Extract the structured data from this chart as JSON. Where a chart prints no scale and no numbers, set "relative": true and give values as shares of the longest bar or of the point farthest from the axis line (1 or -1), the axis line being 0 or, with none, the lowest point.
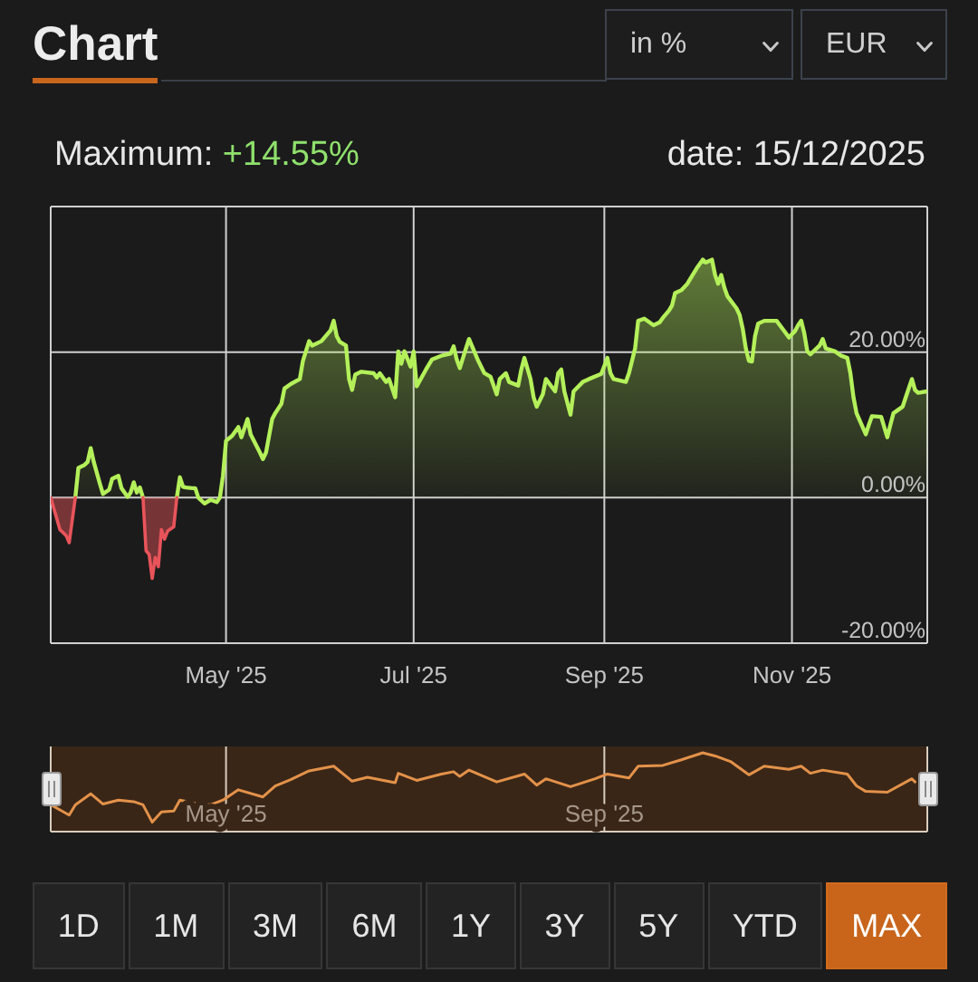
{
  "chart_data": [
    {
      "type": "area",
      "title": "Chart",
      "annotations": [
        "in %",
        "EUR",
        "Maximum: +14.55%",
        "date: 15/12/2025"
      ],
      "x": [
        "2025-03-05",
        "2025-03-08",
        "2025-03-10",
        "2025-03-11",
        "2025-03-12",
        "2025-03-13",
        "2025-03-14",
        "2025-03-16",
        "2025-03-17",
        "2025-03-18",
        "2025-03-19",
        "2025-03-21",
        "2025-03-22",
        "2025-03-24",
        "2025-03-25",
        "2025-03-27",
        "2025-03-28",
        "2025-03-30",
        "2025-03-31",
        "2025-04-01",
        "2025-04-02",
        "2025-04-03",
        "2025-04-04",
        "2025-04-05",
        "2025-04-06",
        "2025-04-07",
        "2025-04-08",
        "2025-04-09",
        "2025-04-10",
        "2025-04-11",
        "2025-04-12",
        "2025-04-14",
        "2025-04-15",
        "2025-04-16",
        "2025-04-17",
        "2025-04-18",
        "2025-04-20",
        "2025-04-21",
        "2025-04-22",
        "2025-04-24",
        "2025-04-26",
        "2025-04-28",
        "2025-04-29",
        "2025-04-30",
        "2025-05-01",
        "2025-05-03",
        "2025-05-05",
        "2025-05-06",
        "2025-05-08",
        "2025-05-09",
        "2025-05-12",
        "2025-05-13",
        "2025-05-14",
        "2025-05-16",
        "2025-05-17",
        "2025-05-19",
        "2025-05-20",
        "2025-05-22",
        "2025-05-25",
        "2025-05-26",
        "2025-05-28",
        "2025-05-29",
        "2025-06-01",
        "2025-06-02",
        "2025-06-04",
        "2025-06-05",
        "2025-06-06",
        "2025-06-07",
        "2025-06-09",
        "2025-06-10",
        "2025-06-11",
        "2025-06-12",
        "2025-06-14",
        "2025-06-18",
        "2025-06-19",
        "2025-06-20",
        "2025-06-22",
        "2025-06-23",
        "2025-06-25",
        "2025-06-26",
        "2025-06-27",
        "2025-06-28",
        "2025-06-30",
        "2025-07-01",
        "2025-07-02",
        "2025-07-05",
        "2025-07-07",
        "2025-07-10",
        "2025-07-13",
        "2025-07-14",
        "2025-07-15",
        "2025-07-16",
        "2025-07-18",
        "2025-07-19",
        "2025-07-22",
        "2025-07-24",
        "2025-07-26",
        "2025-07-28",
        "2025-07-29",
        "2025-07-31",
        "2025-08-01",
        "2025-08-04",
        "2025-08-05",
        "2025-08-06",
        "2025-08-08",
        "2025-08-09",
        "2025-08-10",
        "2025-08-12",
        "2025-08-13",
        "2025-08-16",
        "2025-08-17",
        "2025-08-18",
        "2025-08-19",
        "2025-08-21",
        "2025-08-22",
        "2025-08-25",
        "2025-08-27",
        "2025-08-31",
        "2025-09-02",
        "2025-09-03",
        "2025-09-04",
        "2025-09-08",
        "2025-09-09",
        "2025-09-11",
        "2025-09-12",
        "2025-09-14",
        "2025-09-17",
        "2025-09-19",
        "2025-09-20",
        "2025-09-22",
        "2025-09-23",
        "2025-09-24",
        "2025-09-26",
        "2025-09-28",
        "2025-09-30",
        "2025-10-01",
        "2025-10-03",
        "2025-10-04",
        "2025-10-06",
        "2025-10-07",
        "2025-10-08",
        "2025-10-09",
        "2025-10-10",
        "2025-10-11",
        "2025-10-14",
        "2025-10-15",
        "2025-10-16",
        "2025-10-17",
        "2025-10-18",
        "2025-10-19",
        "2025-10-20",
        "2025-10-21",
        "2025-10-23",
        "2025-10-27",
        "2025-10-30",
        "2025-10-31",
        "2025-11-02",
        "2025-11-03",
        "2025-11-04",
        "2025-11-05",
        "2025-11-06",
        "2025-11-07",
        "2025-11-10",
        "2025-11-11",
        "2025-11-12",
        "2025-11-15",
        "2025-11-17",
        "2025-11-19",
        "2025-11-20",
        "2025-11-21",
        "2025-11-22",
        "2025-11-25",
        "2025-11-26",
        "2025-11-27",
        "2025-11-30",
        "2025-12-02",
        "2025-12-03",
        "2025-12-04",
        "2025-12-07",
        "2025-12-08",
        "2025-12-10",
        "2025-12-11",
        "2025-12-12",
        "2025-12-15"
      ],
      "series": [
        {
          "color": "#b4f05a",
          "values": [
            null,
            null,
            null,
            null,
            null,
            0,
            4.1,
            4.5,
            4.9,
            6.8,
            4.9,
            1.9,
            0.5,
            1.1,
            2.6,
            3.0,
            1.3,
            0.1,
            0.7,
            2.1,
            0.7,
            1.4,
            0,
            null,
            null,
            null,
            null,
            null,
            null,
            null,
            null,
            null,
            0,
            2.8,
            1.5,
            1.4,
            1.3,
            1.3,
            0,
            -0.8,
            -0.3,
            -0.6,
            0,
            3.0,
            7.8,
            8.5,
            9.7,
            8.3,
            10.8,
            8.7,
            6.2,
            5.3,
            6.2,
            10.8,
            11.6,
            12.9,
            15.0,
            15.6,
            16.3,
            18.8,
            21.5,
            20.9,
            21.5,
            22.0,
            23.0,
            24.3,
            22.2,
            21.4,
            20.9,
            16.3,
            14.8,
            16.9,
            17.3,
            17.1,
            16.5,
            17.1,
            15.9,
            16.3,
            13.8,
            20.1,
            18.4,
            20.1,
            18.0,
            20.1,
            15.3,
            17.6,
            19.0,
            19.5,
            19.8,
            20.8,
            19.0,
            17.8,
            20.5,
            21.8,
            18.8,
            17.1,
            16.6,
            14.2,
            16.3,
            17.1,
            15.9,
            15.4,
            17.6,
            19.2,
            16.3,
            13.8,
            12.5,
            14.2,
            16.3,
            14.6,
            17.1,
            17.6,
            14.6,
            11.4,
            14.6,
            15.9,
            16.3,
            17.0,
            19.2,
            17.1,
            16.3,
            15.9,
            17.1,
            20.5,
            24.3,
            24.6,
            23.7,
            24.1,
            24.7,
            25.7,
            26.4,
            28.1,
            28.5,
            29.4,
            30.8,
            31.5,
            32.7,
            32.3,
            32.7,
            30.6,
            29.4,
            30.6,
            28.9,
            27.7,
            26.0,
            25.1,
            23.2,
            20.5,
            18.8,
            18.7,
            22.2,
            23.9,
            24.3,
            24.3,
            22.6,
            22.0,
            22.9,
            23.7,
            24.3,
            22.6,
            20.1,
            19.7,
            20.9,
            21.8,
            20.5,
            20.1,
            19.5,
            19.2,
            17.1,
            13.8,
            11.6,
            8.7,
            10.0,
            11.2,
            11.1,
            8.3,
            10.0,
            11.6,
            12.5,
            13.8,
            16.3,
            14.8,
            14.4,
            14.6
          ]
        },
        {
          "color": "#e8545a",
          "values": [
            0,
            -4.4,
            -5.2,
            -6.2,
            -3.1,
            0,
            null,
            null,
            null,
            null,
            null,
            null,
            null,
            null,
            null,
            null,
            null,
            null,
            null,
            null,
            null,
            null,
            0,
            -7.3,
            -7.8,
            -11.1,
            -8.2,
            -9.5,
            -4.4,
            -5.7,
            -4.6,
            -4.0,
            0,
            null,
            null,
            null,
            null,
            null,
            null,
            null,
            null,
            null,
            null,
            null,
            null,
            null,
            null,
            null,
            null,
            null,
            null,
            null,
            null,
            null,
            null,
            null,
            null,
            null,
            null,
            null,
            null,
            null,
            null,
            null,
            null,
            null,
            null,
            null,
            null,
            null,
            null,
            null,
            null,
            null,
            null,
            null,
            null,
            null,
            null,
            null,
            null,
            null,
            null,
            null,
            null,
            null,
            null,
            null,
            null,
            null,
            null,
            null,
            null,
            null,
            null,
            null,
            null,
            null,
            null,
            null,
            null,
            null,
            null,
            null,
            null,
            null,
            null,
            null,
            null,
            null,
            null,
            null,
            null,
            null,
            null,
            null,
            null,
            null,
            null,
            null,
            null,
            null,
            null,
            null,
            null,
            null,
            null,
            null,
            null,
            null,
            null,
            null,
            null,
            null,
            null,
            null,
            null,
            null,
            null,
            null,
            null,
            null,
            null,
            null,
            null,
            null,
            null,
            null,
            null,
            null,
            null,
            null,
            null,
            null,
            null,
            null,
            null,
            null,
            null,
            null,
            null,
            null,
            null,
            null,
            null,
            null,
            null,
            null,
            null,
            null,
            null,
            null,
            null,
            null,
            null,
            null,
            null,
            null,
            null,
            null,
            null,
            null,
            null,
            null
          ]
        }
      ],
      "xlim": [
        "2025-03-05",
        "2025-12-15"
      ],
      "xticks": [
        {
          "value": "2025-05-01",
          "label": "May '25"
        },
        {
          "value": "2025-07-01",
          "label": "Jul '25"
        },
        {
          "value": "2025-09-01",
          "label": "Sep '25"
        },
        {
          "value": "2025-11-01",
          "label": "Nov '25"
        }
      ],
      "ylim": [
        -20,
        40
      ],
      "yticks": [
        {
          "value": -20,
          "label": "-20.00%"
        },
        {
          "value": 0,
          "label": "0.00%"
        },
        {
          "value": 20,
          "label": "20.00%"
        }
      ],
      "grid": true
    },
    {
      "type": "line",
      "relative": true,
      "annotations": [
        "1D",
        "1M",
        "3M",
        "6M",
        "1Y",
        "3Y",
        "5Y",
        "YTD",
        "MAX"
      ],
      "x": [
        "2025-03-05",
        "2025-03-11",
        "2025-03-13",
        "2025-03-18",
        "2025-03-22",
        "2025-03-27",
        "2025-04-01",
        "2025-04-04",
        "2025-04-07",
        "2025-04-10",
        "2025-04-14",
        "2025-04-16",
        "2025-04-21",
        "2025-04-26",
        "2025-04-30",
        "2025-05-05",
        "2025-05-13",
        "2025-05-17",
        "2025-05-22",
        "2025-05-28",
        "2025-06-05",
        "2025-06-11",
        "2025-06-16",
        "2025-06-25",
        "2025-06-26",
        "2025-07-02",
        "2025-07-10",
        "2025-07-14",
        "2025-07-16",
        "2025-07-19",
        "2025-07-28",
        "2025-08-06",
        "2025-08-10",
        "2025-08-13",
        "2025-08-21",
        "2025-08-29",
        "2025-09-02",
        "2025-09-09",
        "2025-09-12",
        "2025-09-20",
        "2025-09-26",
        "2025-10-03",
        "2025-10-07",
        "2025-10-12",
        "2025-10-18",
        "2025-10-23",
        "2025-10-31",
        "2025-11-04",
        "2025-11-07",
        "2025-11-11",
        "2025-11-19",
        "2025-11-22",
        "2025-11-25",
        "2025-12-02",
        "2025-12-10",
        "2025-12-11"
      ],
      "series": [
        {
          "color": "#e3924a",
          "values": [
            0.34,
            0.21,
            0.34,
            0.48,
            0.35,
            0.4,
            0.38,
            0.34,
            0.12,
            0.25,
            0.26,
            0.4,
            0.36,
            0.34,
            0.4,
            0.53,
            0.44,
            0.58,
            0.66,
            0.77,
            0.83,
            0.64,
            0.69,
            0.62,
            0.74,
            0.65,
            0.73,
            0.76,
            0.7,
            0.78,
            0.63,
            0.73,
            0.59,
            0.67,
            0.57,
            0.67,
            0.73,
            0.68,
            0.83,
            0.84,
            0.91,
            1,
            0.96,
            0.89,
            0.72,
            0.83,
            0.79,
            0.83,
            0.74,
            0.78,
            0.73,
            0.58,
            0.51,
            0.5,
            0.67,
            0.63
          ]
        }
      ],
      "xlim": [
        "2025-03-05",
        "2025-12-15"
      ],
      "xticks": [
        {
          "value": "2025-05-01",
          "label": "May '25"
        },
        {
          "value": "2025-09-01",
          "label": "Sep '25"
        }
      ],
      "grid": "x"
    }
  ]
}
